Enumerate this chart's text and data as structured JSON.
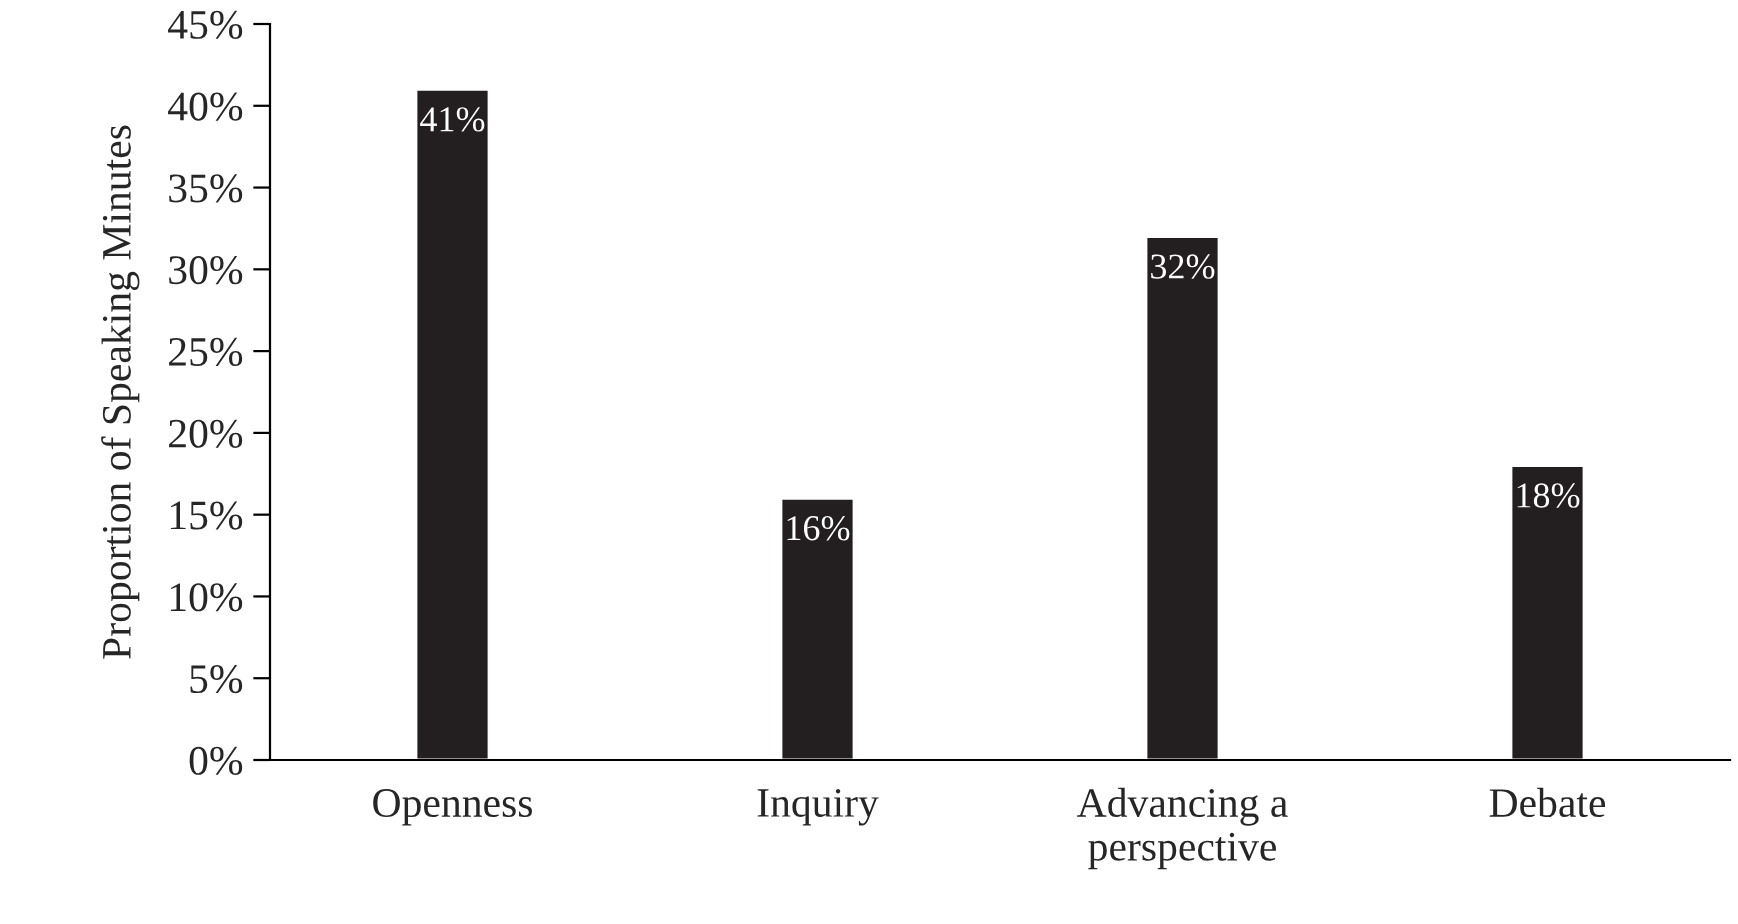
{
  "chart_data": {
    "type": "bar",
    "ylabel": "Proportion of Speaking Minutes",
    "categories": [
      "Openness",
      "Inquiry",
      "Advancing a\nperspective",
      "Debate"
    ],
    "values": [
      41,
      16,
      32,
      18
    ],
    "value_labels": [
      "41%",
      "16%",
      "32%",
      "18%"
    ],
    "color": "#231f20",
    "ylim": [
      0,
      45
    ],
    "yticks": [
      {
        "value": 0,
        "label": "0%"
      },
      {
        "value": 5,
        "label": "5%"
      },
      {
        "value": 10,
        "label": "10%"
      },
      {
        "value": 15,
        "label": "15%"
      },
      {
        "value": 20,
        "label": "20%"
      },
      {
        "value": 25,
        "label": "25%"
      },
      {
        "value": 30,
        "label": "30%"
      },
      {
        "value": 35,
        "label": "35%"
      },
      {
        "value": 40,
        "label": "40%"
      },
      {
        "value": 45,
        "label": "45%"
      }
    ],
    "grid": false,
    "legend": false
  }
}
